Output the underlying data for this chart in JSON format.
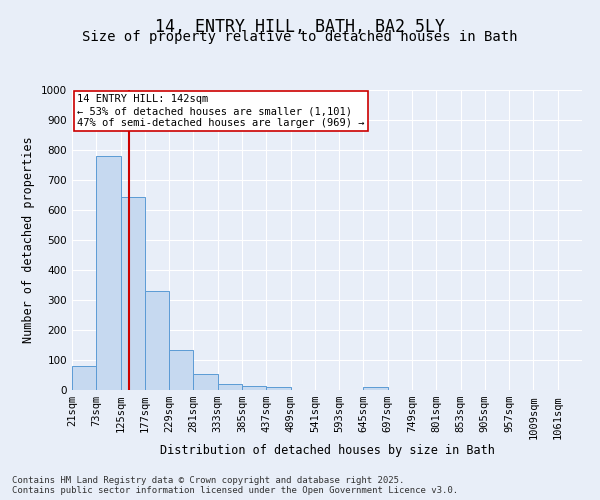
{
  "title": "14, ENTRY HILL, BATH, BA2 5LY",
  "subtitle": "Size of property relative to detached houses in Bath",
  "xlabel": "Distribution of detached houses by size in Bath",
  "ylabel": "Number of detached properties",
  "property_label": "14 ENTRY HILL: 142sqm",
  "annotation_line1": "← 53% of detached houses are smaller (1,101)",
  "annotation_line2": "47% of semi-detached houses are larger (969) →",
  "bin_labels": [
    "21sqm",
    "73sqm",
    "125sqm",
    "177sqm",
    "229sqm",
    "281sqm",
    "333sqm",
    "385sqm",
    "437sqm",
    "489sqm",
    "541sqm",
    "593sqm",
    "645sqm",
    "697sqm",
    "749sqm",
    "801sqm",
    "853sqm",
    "905sqm",
    "957sqm",
    "1009sqm",
    "1061sqm"
  ],
  "bin_edges": [
    21,
    73,
    125,
    177,
    229,
    281,
    333,
    385,
    437,
    489,
    541,
    593,
    645,
    697,
    749,
    801,
    853,
    905,
    957,
    1009,
    1061
  ],
  "bar_heights": [
    80,
    780,
    645,
    330,
    135,
    55,
    20,
    15,
    10,
    0,
    0,
    0,
    10,
    0,
    0,
    0,
    0,
    0,
    0,
    0,
    0
  ],
  "bar_color": "#c6d9f0",
  "bar_edge_color": "#5b9bd5",
  "red_line_x": 142,
  "ylim": [
    0,
    1000
  ],
  "yticks": [
    0,
    100,
    200,
    300,
    400,
    500,
    600,
    700,
    800,
    900,
    1000
  ],
  "bg_color": "#e8eef8",
  "grid_color": "#ffffff",
  "annotation_box_color": "#ffffff",
  "annotation_box_edge": "#cc0000",
  "red_line_color": "#cc0000",
  "footer_line1": "Contains HM Land Registry data © Crown copyright and database right 2025.",
  "footer_line2": "Contains public sector information licensed under the Open Government Licence v3.0.",
  "title_fontsize": 12,
  "subtitle_fontsize": 10,
  "axis_label_fontsize": 8.5,
  "tick_fontsize": 7.5,
  "annotation_fontsize": 7.5,
  "footer_fontsize": 6.5
}
